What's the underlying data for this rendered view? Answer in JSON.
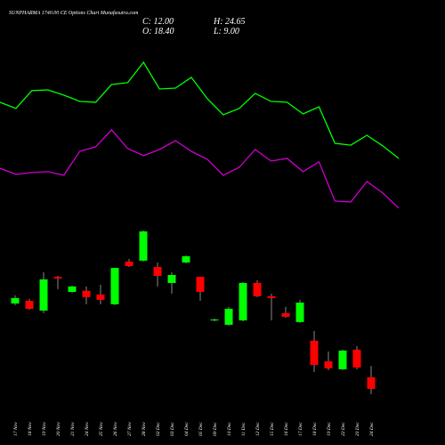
{
  "chart_data": {
    "type": "candlestick",
    "title": "SUNPHARMA 1740.00 CE Options Chart Munafasutra.com",
    "info": [
      "C: 12.00",
      "H: 24.65",
      "O: 18.40",
      "L: 9.00"
    ],
    "categories": [
      "17 Nov",
      "18 Nov",
      "19 Nov",
      "20 Nov",
      "21 Nov",
      "24 Nov",
      "25 Nov",
      "26 Nov",
      "27 Nov",
      "28 Nov",
      "02 Dec",
      "03 Dec",
      "04 Dec",
      "05 Dec",
      "09 Dec",
      "10 Dec",
      "11 Dec",
      "12 Dec",
      "15 Dec",
      "16 Dec",
      "17 Dec",
      "18 Dec",
      "19 Dec",
      "22 Dec",
      "23 Dec",
      "24 Dec"
    ],
    "open": [
      59.0,
      60.5,
      55.1,
      73.7,
      65.4,
      66.0,
      64.0,
      58.6,
      82.1,
      82.6,
      79.1,
      70.3,
      81.6,
      73.7,
      49.7,
      47.3,
      49.7,
      70.3,
      63.0,
      53.7,
      48.8,
      38.5,
      27.2,
      22.8,
      33.6,
      18.4
    ],
    "high": [
      63.5,
      61.5,
      76.2,
      74.2,
      68.8,
      68.4,
      69.3,
      78.6,
      83.5,
      99.2,
      81.6,
      76.2,
      85.5,
      73.7,
      50.7,
      57.1,
      70.8,
      71.8,
      64.4,
      57.1,
      61.0,
      43.9,
      32.6,
      33.6,
      35.5,
      24.65
    ],
    "low": [
      58.0,
      55.6,
      53.7,
      66.9,
      64.9,
      58.6,
      58.6,
      58.1,
      79.1,
      82.1,
      68.4,
      64.4,
      81.1,
      60.5,
      49.2,
      46.8,
      49.2,
      62.5,
      49.7,
      51.2,
      48.3,
      21.3,
      22.3,
      22.3,
      22.8,
      9.0
    ],
    "close": [
      62.0,
      56.1,
      72.3,
      72.8,
      68.4,
      62.5,
      61.0,
      78.6,
      79.6,
      98.7,
      74.2,
      74.7,
      85.0,
      65.4,
      50.2,
      56.1,
      70.3,
      63.0,
      62.0,
      51.7,
      59.5,
      25.2,
      23.3,
      33.1,
      23.8,
      12.0
    ],
    "up_color": "#00ff00",
    "down_color": "#ff0000",
    "series": [
      {
        "color": "#00ff00",
        "values": [
          169.8,
          166.4,
          176.2,
          176.6,
          173.7,
          170.3,
          169.8,
          179.6,
          180.6,
          191.8,
          177.1,
          177.6,
          183.5,
          171.7,
          162.9,
          166.4,
          174.7,
          170.3,
          169.8,
          163.4,
          167.3,
          147.2,
          146.2,
          151.6,
          145.8,
          138.9
        ]
      },
      {
        "color": "#cc00cc",
        "values": [
          133.5,
          130.1,
          131.1,
          131.6,
          129.6,
          142.8,
          145.3,
          154.6,
          144.3,
          140.4,
          143.8,
          148.7,
          142.8,
          138.4,
          129.6,
          134.0,
          143.8,
          137.4,
          138.9,
          131.6,
          137.0,
          115.4,
          114.9,
          126.2,
          119.8,
          111.5
        ]
      }
    ],
    "ylim": [
      -18.9,
      226.1
    ]
  }
}
